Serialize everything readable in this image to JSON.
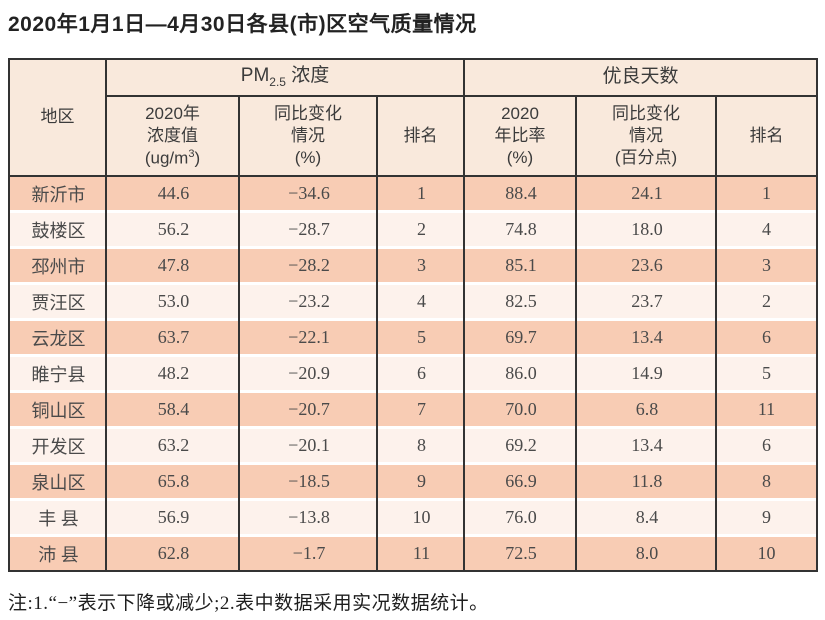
{
  "colors": {
    "stripe_dark": "#f8ccb4",
    "stripe_light": "#fdf2ec",
    "header_bg": "#f9e9dc",
    "border": "#333333"
  },
  "title": "2020年1月1日—4月30日各县(市)区空气质量情况",
  "table": {
    "header": {
      "region": "地区",
      "pm_group": {
        "pre": "PM",
        "sub": "2.5",
        "post": " 浓度"
      },
      "good_group": "优良天数",
      "pm_value": {
        "l1": "2020年",
        "l2": "浓度值",
        "l3_pre": "(ug/m",
        "l3_sup": "3",
        "l3_post": ")"
      },
      "pm_change": {
        "l1": "同比变化",
        "l2": "情况",
        "l3": "(%)"
      },
      "pm_rank": "排名",
      "good_rate": {
        "l1": "2020",
        "l2": "年比率",
        "l3": "(%)"
      },
      "good_change": {
        "l1": "同比变化",
        "l2": "情况",
        "l3": "(百分点)"
      },
      "good_rank": "排名"
    },
    "rows": [
      {
        "region": "新沂市",
        "pm_value": "44.6",
        "pm_change": "−34.6",
        "pm_rank": "1",
        "good_rate": "88.4",
        "good_change": "24.1",
        "good_rank": "1"
      },
      {
        "region": "鼓楼区",
        "pm_value": "56.2",
        "pm_change": "−28.7",
        "pm_rank": "2",
        "good_rate": "74.8",
        "good_change": "18.0",
        "good_rank": "4"
      },
      {
        "region": "邳州市",
        "pm_value": "47.8",
        "pm_change": "−28.2",
        "pm_rank": "3",
        "good_rate": "85.1",
        "good_change": "23.6",
        "good_rank": "3"
      },
      {
        "region": "贾汪区",
        "pm_value": "53.0",
        "pm_change": "−23.2",
        "pm_rank": "4",
        "good_rate": "82.5",
        "good_change": "23.7",
        "good_rank": "2"
      },
      {
        "region": "云龙区",
        "pm_value": "63.7",
        "pm_change": "−22.1",
        "pm_rank": "5",
        "good_rate": "69.7",
        "good_change": "13.4",
        "good_rank": "6"
      },
      {
        "region": "睢宁县",
        "pm_value": "48.2",
        "pm_change": "−20.9",
        "pm_rank": "6",
        "good_rate": "86.0",
        "good_change": "14.9",
        "good_rank": "5"
      },
      {
        "region": "铜山区",
        "pm_value": "58.4",
        "pm_change": "−20.7",
        "pm_rank": "7",
        "good_rate": "70.0",
        "good_change": "6.8",
        "good_rank": "11"
      },
      {
        "region": "开发区",
        "pm_value": "63.2",
        "pm_change": "−20.1",
        "pm_rank": "8",
        "good_rate": "69.2",
        "good_change": "13.4",
        "good_rank": "6"
      },
      {
        "region": "泉山区",
        "pm_value": "65.8",
        "pm_change": "−18.5",
        "pm_rank": "9",
        "good_rate": "66.9",
        "good_change": "11.8",
        "good_rank": "8"
      },
      {
        "region": "丰 县",
        "pm_value": "56.9",
        "pm_change": "−13.8",
        "pm_rank": "10",
        "good_rate": "76.0",
        "good_change": "8.4",
        "good_rank": "9"
      },
      {
        "region": "沛 县",
        "pm_value": "62.8",
        "pm_change": "−1.7",
        "pm_rank": "11",
        "good_rate": "72.5",
        "good_change": "8.0",
        "good_rank": "10"
      }
    ]
  },
  "note": "注:1.“−”表示下降或减少;2.表中数据采用实况数据统计。"
}
